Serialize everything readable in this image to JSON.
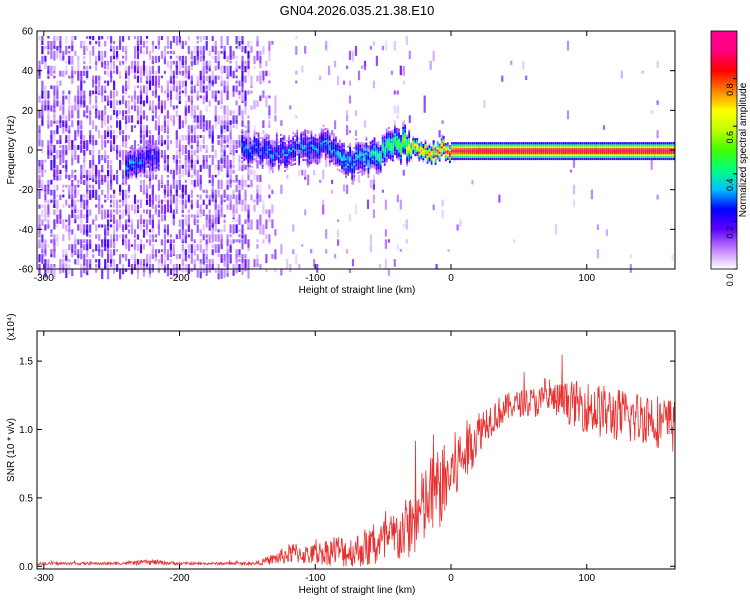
{
  "title": "GN04.2026.035.21.38.E10",
  "chart_data": [
    {
      "type": "heatmap",
      "xlabel": "Height of straight line (km)",
      "ylabel": "Frequency (Hz)",
      "xlim": [
        -305,
        165
      ],
      "ylim": [
        -60,
        60
      ],
      "x_ticks": [
        -300,
        -200,
        -100,
        0,
        100
      ],
      "y_ticks": [
        -60,
        -40,
        -20,
        0,
        20,
        40,
        60
      ],
      "colorbar": {
        "label": "Normalized spectral amplitude",
        "range": [
          0,
          1
        ],
        "ticks": [
          "0.0",
          "0.2",
          "0.4",
          "0.6",
          "0.8"
        ],
        "tick_values": [
          0,
          0.2,
          0.4,
          0.6,
          0.8
        ],
        "colors": [
          "#ffffff",
          "#c080ff",
          "#6000ff",
          "#0000ff",
          "#00c0ff",
          "#00ff80",
          "#40ff00",
          "#c0ff00",
          "#ffff00",
          "#ff8000",
          "#ff0000",
          "#ff0080",
          "#ff0090"
        ]
      },
      "ridge": {
        "x": [
          -240,
          -230,
          -220,
          -150,
          -130,
          -110,
          -90,
          -80,
          -70,
          -60,
          -50,
          -40,
          -35,
          -30,
          -20,
          -10,
          0,
          20,
          60,
          100,
          165
        ],
        "y": [
          -8,
          -5,
          -4,
          0,
          0,
          2,
          2,
          -6,
          -5,
          -3,
          0,
          5,
          4,
          2,
          -2,
          0,
          0,
          0,
          0,
          0,
          0
        ],
        "amplitude": [
          0.3,
          0.3,
          0.25,
          0.3,
          0.28,
          0.3,
          0.3,
          0.35,
          0.35,
          0.4,
          0.45,
          0.5,
          0.55,
          0.7,
          0.75,
          0.85,
          0.95,
          1.0,
          1.0,
          1.0,
          1.0
        ]
      }
    },
    {
      "type": "line",
      "xlabel": "Height of straight line (km)",
      "ylabel": "SNR (10 * v/v)",
      "yscale_label": "(x10⁴)",
      "xlim": [
        -305,
        165
      ],
      "ylim": [
        -0.02,
        1.72
      ],
      "x_ticks": [
        -300,
        -200,
        -100,
        0,
        100
      ],
      "y_ticks": [
        "0.0",
        "0.5",
        "1.0",
        "1.5"
      ],
      "y_tick_values": [
        0,
        0.5,
        1.0,
        1.5
      ],
      "color": "#e83030",
      "series": [
        {
          "x": [
            -305,
            -280,
            -250,
            -220,
            -200,
            -180,
            -160,
            -145,
            -135,
            -125,
            -115,
            -105,
            -95,
            -85,
            -75,
            -65,
            -55,
            -45,
            -35,
            -25,
            -15,
            -5,
            5,
            15,
            25,
            35,
            45,
            55,
            65,
            75,
            85,
            95,
            105,
            115,
            125,
            135,
            145,
            155,
            165
          ],
          "y": [
            0.02,
            0.02,
            0.02,
            0.03,
            0.02,
            0.02,
            0.02,
            0.02,
            0.04,
            0.07,
            0.1,
            0.08,
            0.1,
            0.12,
            0.1,
            0.13,
            0.15,
            0.18,
            0.25,
            0.35,
            0.5,
            0.6,
            0.75,
            0.9,
            1.05,
            1.12,
            1.18,
            1.2,
            1.2,
            1.22,
            1.2,
            1.18,
            1.15,
            1.12,
            1.1,
            1.08,
            1.1,
            1.05,
            1.02
          ],
          "noise": [
            0.01,
            0.01,
            0.01,
            0.02,
            0.01,
            0.01,
            0.01,
            0.01,
            0.03,
            0.06,
            0.08,
            0.07,
            0.09,
            0.12,
            0.12,
            0.14,
            0.17,
            0.2,
            0.22,
            0.28,
            0.32,
            0.3,
            0.26,
            0.2,
            0.14,
            0.12,
            0.1,
            0.1,
            0.12,
            0.12,
            0.15,
            0.18,
            0.2,
            0.2,
            0.2,
            0.2,
            0.2,
            0.2,
            0.2
          ]
        }
      ]
    }
  ]
}
